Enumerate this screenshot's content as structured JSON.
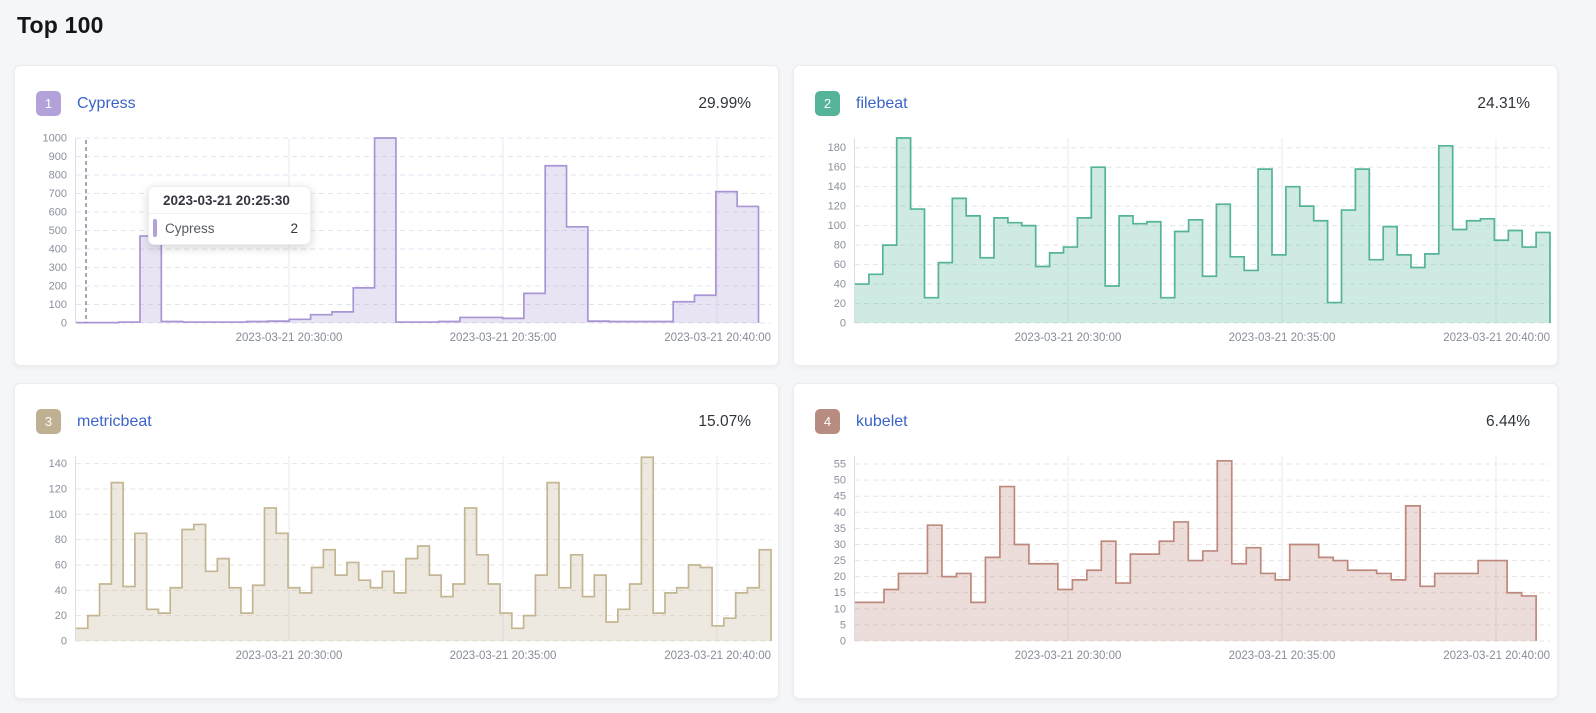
{
  "page": {
    "title": "Top 100"
  },
  "x_axis_labels": [
    "2023-03-21 20:30:00",
    "2023-03-21 20:35:00",
    "2023-03-21 20:40:00"
  ],
  "tooltip": {
    "title": "2023-03-21 20:25:30",
    "series": "Cypress",
    "value": "2",
    "color": "#b2a2d9"
  },
  "chart_data": [
    {
      "type": "area",
      "rank": "1",
      "name": "Cypress",
      "percent": "29.99%",
      "badge_color": "#b2a2d9",
      "line_color": "#a995d3",
      "fill_color": "rgba(169,149,211,0.25)",
      "hgrid_color": "#e5e2f0",
      "y_ticks": [
        0,
        100,
        200,
        300,
        400,
        500,
        600,
        700,
        800,
        900,
        1000
      ],
      "y_axis_max": 1000,
      "x_coverage": 0.982,
      "cursor_frac": 0.0144,
      "x_tick_labels": [
        "2023-03-21 20:30:00",
        "2023-03-21 20:35:00",
        "2023-03-21 20:40:00"
      ],
      "values": [
        2,
        2,
        5,
        470,
        8,
        5,
        5,
        5,
        8,
        10,
        20,
        45,
        60,
        190,
        1000,
        5,
        5,
        8,
        30,
        30,
        25,
        160,
        850,
        520,
        10,
        8,
        8,
        8,
        115,
        150,
        710,
        630
      ]
    },
    {
      "type": "area",
      "rank": "2",
      "name": "filebeat",
      "percent": "24.31%",
      "badge_color": "#54b399",
      "line_color": "#54b399",
      "fill_color": "rgba(84,179,153,0.28)",
      "hgrid_color": "#e1e7e8",
      "y_ticks": [
        0,
        20,
        40,
        60,
        80,
        100,
        120,
        140,
        160,
        180
      ],
      "y_axis_max": 190,
      "x_coverage": 1,
      "cursor_frac": null,
      "x_tick_labels": [
        "2023-03-21 20:30:00",
        "2023-03-21 20:35:00",
        "2023-03-21 20:40:00"
      ],
      "values": [
        40,
        50,
        80,
        190,
        117,
        26,
        62,
        128,
        110,
        67,
        108,
        103,
        100,
        58,
        72,
        78,
        108,
        160,
        38,
        110,
        102,
        104,
        26,
        94,
        106,
        48,
        122,
        68,
        54,
        158,
        70,
        140,
        120,
        105,
        21,
        116,
        158,
        65,
        99,
        70,
        57,
        71,
        182,
        96,
        105,
        107,
        85,
        95,
        78,
        93
      ]
    },
    {
      "type": "area",
      "rank": "3",
      "name": "metricbeat",
      "percent": "15.07%",
      "badge_color": "#bfb091",
      "line_color": "#c4b693",
      "fill_color": "rgba(185,168,136,0.25)",
      "hgrid_color": "#e8e6df",
      "y_ticks": [
        0,
        20,
        40,
        60,
        80,
        100,
        120,
        140
      ],
      "y_axis_max": 146,
      "x_coverage": 1,
      "cursor_frac": null,
      "x_tick_labels": [
        "2023-03-21 20:30:00",
        "2023-03-21 20:35:00",
        "2023-03-21 20:40:00"
      ],
      "values": [
        10,
        20,
        45,
        125,
        43,
        85,
        25,
        22,
        42,
        88,
        92,
        55,
        65,
        42,
        22,
        44,
        105,
        85,
        42,
        38,
        58,
        72,
        52,
        62,
        48,
        42,
        55,
        38,
        65,
        75,
        52,
        35,
        45,
        105,
        68,
        45,
        22,
        10,
        20,
        52,
        125,
        42,
        68,
        35,
        52,
        15,
        25,
        45,
        145,
        22,
        38,
        42,
        60,
        58,
        12,
        18,
        38,
        42,
        72
      ]
    },
    {
      "type": "area",
      "rank": "4",
      "name": "kubelet",
      "percent": "6.44%",
      "badge_color": "#b88c80",
      "line_color": "#bd897c",
      "fill_color": "rgba(170,101,86,0.22)",
      "hgrid_color": "#ece2e0",
      "y_ticks": [
        0,
        5,
        10,
        15,
        20,
        25,
        30,
        35,
        40,
        45,
        50,
        55
      ],
      "y_axis_max": 57.5,
      "x_coverage": 0.98,
      "cursor_frac": null,
      "x_tick_labels": [
        "2023-03-21 20:30:00",
        "2023-03-21 20:35:00",
        "2023-03-21 20:40:00"
      ],
      "values": [
        12,
        12,
        16,
        21,
        21,
        36,
        20,
        21,
        12,
        26,
        48,
        30,
        24,
        24,
        16,
        19,
        22,
        31,
        18,
        27,
        27,
        31,
        37,
        25,
        28,
        56,
        24,
        29,
        21,
        19,
        30,
        30,
        26,
        25,
        22,
        22,
        21,
        19,
        42,
        17,
        21,
        21,
        21,
        25,
        25,
        15,
        14
      ]
    }
  ]
}
